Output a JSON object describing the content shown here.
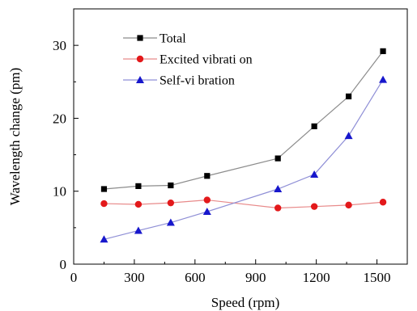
{
  "chart_data": {
    "type": "line",
    "xlabel": "Speed (rpm)",
    "ylabel": "Wavelength change (pm)",
    "xlim": [
      0,
      1650
    ],
    "ylim": [
      0,
      35
    ],
    "xticks": [
      "0",
      "300",
      "600",
      "900",
      "1200",
      "1500"
    ],
    "yticks": [
      "0",
      "10",
      "20",
      "30"
    ],
    "legend_position": "top-left",
    "grid": false,
    "series": [
      {
        "name": "Total",
        "marker": "square",
        "color": "#000000",
        "line_color": "#8c8c8c",
        "x": [
          150,
          320,
          480,
          660,
          1010,
          1190,
          1360,
          1530
        ],
        "y": [
          10.3,
          10.7,
          10.8,
          12.1,
          14.5,
          18.9,
          23.0,
          29.2
        ]
      },
      {
        "name": "Excited vibrati on",
        "marker": "circle",
        "color": "#e3191b",
        "line_color": "#e88a8a",
        "x": [
          150,
          320,
          480,
          660,
          1010,
          1190,
          1360,
          1530
        ],
        "y": [
          8.3,
          8.2,
          8.4,
          8.8,
          7.7,
          7.9,
          8.1,
          8.5
        ]
      },
      {
        "name": "Self-vi bration",
        "marker": "triangle",
        "color": "#1717cc",
        "line_color": "#8f8fd6",
        "x": [
          150,
          320,
          480,
          660,
          1010,
          1190,
          1360,
          1530
        ],
        "y": [
          3.4,
          4.6,
          5.7,
          7.2,
          10.3,
          12.3,
          17.6,
          25.3
        ]
      }
    ]
  }
}
